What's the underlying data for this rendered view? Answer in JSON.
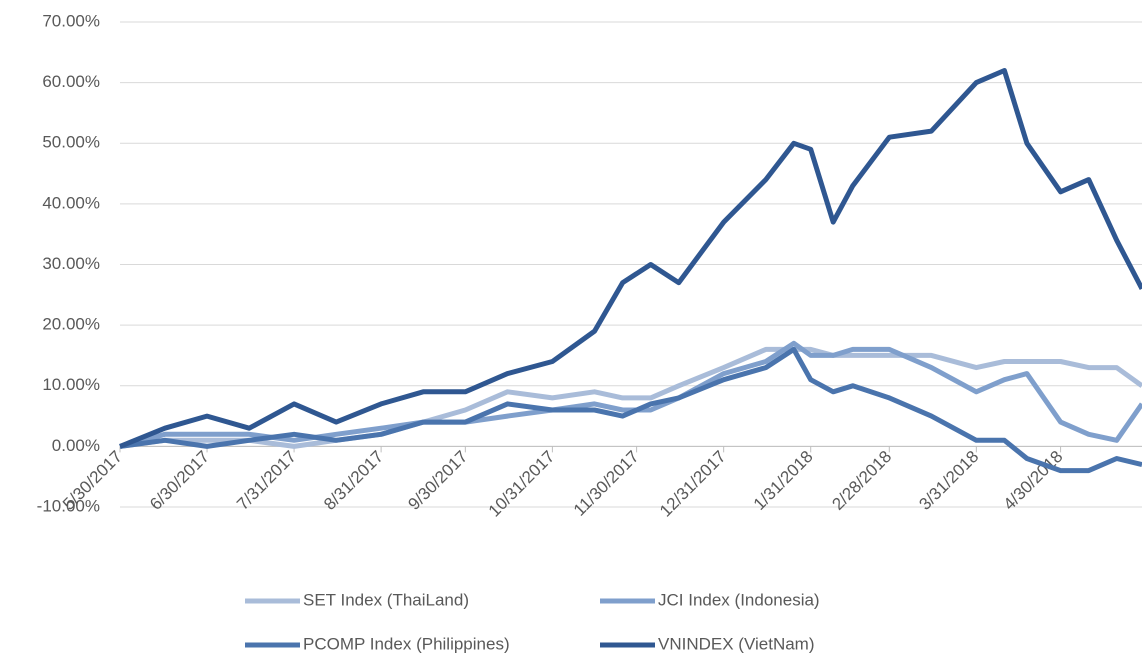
{
  "chart_data": {
    "type": "line",
    "x": [
      "2017-05-30",
      "2017-06-15",
      "2017-06-30",
      "2017-07-15",
      "2017-07-31",
      "2017-08-15",
      "2017-08-31",
      "2017-09-15",
      "2017-09-30",
      "2017-10-15",
      "2017-10-31",
      "2017-11-15",
      "2017-11-25",
      "2017-12-05",
      "2017-12-15",
      "2017-12-31",
      "2018-01-15",
      "2018-01-25",
      "2018-01-31",
      "2018-02-08",
      "2018-02-15",
      "2018-02-28",
      "2018-03-15",
      "2018-03-31",
      "2018-04-10",
      "2018-04-18",
      "2018-04-30",
      "2018-05-10",
      "2018-05-20",
      "2018-05-29"
    ],
    "series": [
      {
        "name": "SET Index (ThaiLand)",
        "color": "#a9bcd9",
        "values": [
          0,
          1,
          1,
          1,
          0,
          1,
          2,
          4,
          6,
          9,
          8,
          9,
          8,
          8,
          10,
          13,
          16,
          16,
          16,
          15,
          15,
          15,
          15,
          13,
          14,
          14,
          14,
          13,
          13,
          10
        ]
      },
      {
        "name": "JCI Index (Indonesia)",
        "color": "#7f9fcc",
        "values": [
          0,
          2,
          2,
          2,
          1,
          2,
          3,
          4,
          4,
          5,
          6,
          7,
          6,
          6,
          8,
          12,
          14,
          17,
          15,
          15,
          16,
          16,
          13,
          9,
          11,
          12,
          4,
          2,
          1,
          7
        ]
      },
      {
        "name": "PCOMP Index (Philippines)",
        "color": "#4a74ad",
        "values": [
          0,
          1,
          0,
          1,
          2,
          1,
          2,
          4,
          4,
          7,
          6,
          6,
          5,
          7,
          8,
          11,
          13,
          16,
          11,
          9,
          10,
          8,
          5,
          1,
          1,
          -2,
          -4,
          -4,
          -2,
          -3
        ]
      },
      {
        "name": "VNINDEX (VietNam)",
        "color": "#2f5791",
        "values": [
          0,
          3,
          5,
          3,
          7,
          4,
          7,
          9,
          9,
          12,
          14,
          19,
          27,
          30,
          27,
          37,
          44,
          50,
          49,
          37,
          43,
          51,
          52,
          60,
          62,
          50,
          42,
          44,
          34,
          26
        ]
      }
    ],
    "xlim": [
      "2017-05-30",
      "2018-05-29"
    ],
    "xticks": [
      {
        "value": "2017-05-30",
        "label": "5/30/2017"
      },
      {
        "value": "2017-06-30",
        "label": "6/30/2017"
      },
      {
        "value": "2017-07-31",
        "label": "7/31/2017"
      },
      {
        "value": "2017-08-31",
        "label": "8/31/2017"
      },
      {
        "value": "2017-09-30",
        "label": "9/30/2017"
      },
      {
        "value": "2017-10-31",
        "label": "10/31/2017"
      },
      {
        "value": "2017-11-30",
        "label": "11/30/2017"
      },
      {
        "value": "2017-12-31",
        "label": "12/31/2017"
      },
      {
        "value": "2018-01-31",
        "label": "1/31/2018"
      },
      {
        "value": "2018-02-28",
        "label": "2/28/2018"
      },
      {
        "value": "2018-03-31",
        "label": "3/31/2018"
      },
      {
        "value": "2018-04-30",
        "label": "4/30/2018"
      }
    ],
    "ylim": [
      -10,
      70
    ],
    "yticks": [
      {
        "value": -10,
        "label": "-10.00%"
      },
      {
        "value": 0,
        "label": "0.00%"
      },
      {
        "value": 10,
        "label": "10.00%"
      },
      {
        "value": 20,
        "label": "20.00%"
      },
      {
        "value": 30,
        "label": "30.00%"
      },
      {
        "value": 40,
        "label": "40.00%"
      },
      {
        "value": 50,
        "label": "50.00%"
      },
      {
        "value": 60,
        "label": "60.00%"
      },
      {
        "value": 70,
        "label": "70.00%"
      }
    ],
    "grid": true,
    "legend": "bottom"
  }
}
